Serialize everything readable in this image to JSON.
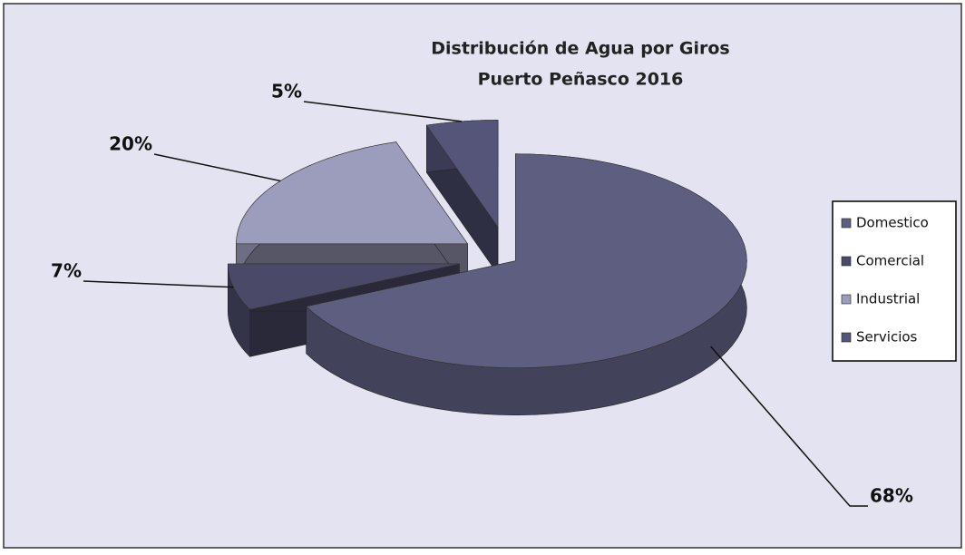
{
  "chart_data": {
    "type": "pie",
    "title": "Distribución de Agua por Giros",
    "subtitle": "Puerto Peñasco 2016",
    "categories": [
      "Domestico",
      "Comercial",
      "Industrial",
      "Servicios"
    ],
    "values": [
      68,
      7,
      20,
      5
    ],
    "value_labels": [
      "68%",
      "7%",
      "20%",
      "5%"
    ],
    "colors": [
      "#5e5e80",
      "#4a4a68",
      "#9c9cbc",
      "#55557a"
    ],
    "legend": "right"
  }
}
